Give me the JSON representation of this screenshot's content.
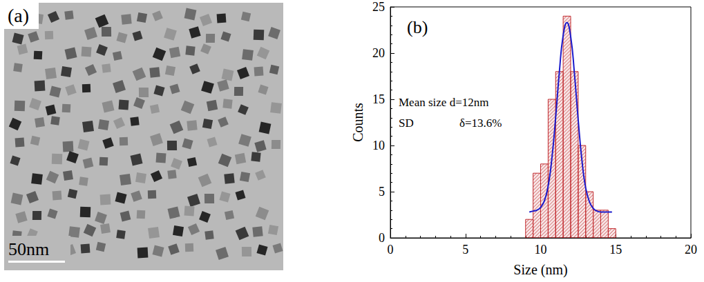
{
  "image_panel": {
    "label": "(a)",
    "scale_bar": "50nm"
  },
  "chart_data": {
    "type": "histogram",
    "panel_label": "(b)",
    "xlabel": "Size (nm)",
    "ylabel": "Counts",
    "bins": [
      9,
      9.5,
      10,
      10.5,
      11,
      11.5,
      12,
      12.5,
      13,
      13.5,
      14,
      14.5,
      15
    ],
    "counts": [
      2,
      7,
      8,
      15,
      18,
      24,
      18,
      10,
      5,
      3,
      3,
      1
    ],
    "color": "#c0282d",
    "fit": {
      "type": "line",
      "color": "#1a1acc",
      "line_style": "solid",
      "x": [
        9.25,
        9.5,
        9.75,
        10,
        10.25,
        10.5,
        10.75,
        11,
        11.25,
        11.5,
        11.75,
        12,
        12.25,
        12.5,
        12.75,
        13,
        13.25,
        13.5,
        13.75,
        14,
        14.25,
        14.5,
        14.75
      ],
      "values": [
        2.8,
        2.9,
        3.0,
        3.3,
        4.0,
        5.6,
        8.6,
        13.0,
        18.0,
        21.9,
        23.3,
        21.8,
        17.8,
        12.8,
        8.4,
        5.4,
        3.9,
        3.2,
        2.9,
        2.8,
        2.8,
        2.8,
        2.8
      ]
    },
    "annotations": [
      "Mean size d=12nm",
      "SD",
      "δ=13.6%"
    ],
    "xlim": [
      0,
      20
    ],
    "xticks": [
      0,
      5,
      10,
      15,
      20
    ],
    "ylim": [
      0,
      25
    ],
    "yticks": [
      0,
      5,
      10,
      15,
      20,
      25
    ],
    "grid": false
  }
}
